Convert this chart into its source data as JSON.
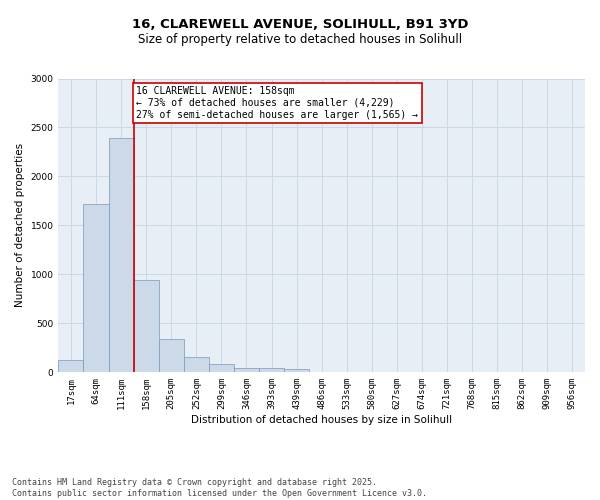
{
  "title_line1": "16, CLAREWELL AVENUE, SOLIHULL, B91 3YD",
  "title_line2": "Size of property relative to detached houses in Solihull",
  "xlabel": "Distribution of detached houses by size in Solihull",
  "ylabel": "Number of detached properties",
  "categories": [
    "17sqm",
    "64sqm",
    "111sqm",
    "158sqm",
    "205sqm",
    "252sqm",
    "299sqm",
    "346sqm",
    "393sqm",
    "439sqm",
    "486sqm",
    "533sqm",
    "580sqm",
    "627sqm",
    "674sqm",
    "721sqm",
    "768sqm",
    "815sqm",
    "862sqm",
    "909sqm",
    "956sqm"
  ],
  "values": [
    130,
    1720,
    2390,
    940,
    340,
    160,
    80,
    45,
    40,
    30,
    0,
    0,
    0,
    0,
    0,
    0,
    0,
    0,
    0,
    0,
    0
  ],
  "bar_color": "#ccd9e8",
  "bar_edge_color": "#7799bb",
  "vline_x_idx": 3,
  "vline_color": "#cc0000",
  "annotation_title": "16 CLAREWELL AVENUE: 158sqm",
  "annotation_line2": "← 73% of detached houses are smaller (4,229)",
  "annotation_line3": "27% of semi-detached houses are larger (1,565) →",
  "annotation_box_color": "#cc0000",
  "annotation_bg": "#ffffff",
  "ylim": [
    0,
    3000
  ],
  "yticks": [
    0,
    500,
    1000,
    1500,
    2000,
    2500,
    3000
  ],
  "grid_color": "#c8d4e4",
  "bg_color": "#e8eef6",
  "footer_line1": "Contains HM Land Registry data © Crown copyright and database right 2025.",
  "footer_line2": "Contains public sector information licensed under the Open Government Licence v3.0.",
  "title_fontsize": 9.5,
  "subtitle_fontsize": 8.5,
  "axis_label_fontsize": 7.5,
  "tick_fontsize": 6.5,
  "annotation_fontsize": 7,
  "footer_fontsize": 6
}
